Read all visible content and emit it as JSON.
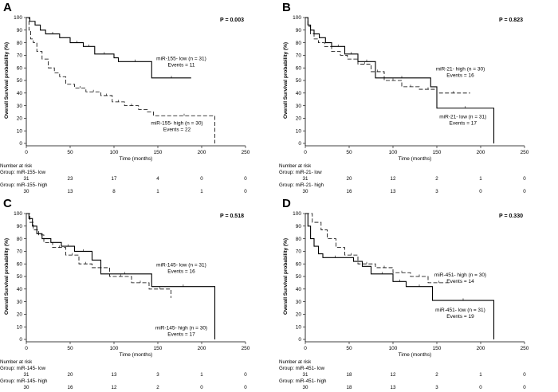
{
  "chart_data": [
    {
      "type": "line",
      "chart_subtype": "kaplan-meier",
      "panel": "A",
      "p_value": "P = 0.003",
      "xlabel": "Time (months)",
      "ylabel": "Overall Survival probability (%)",
      "xlim": [
        0,
        250
      ],
      "ylim": [
        0,
        100
      ],
      "x_ticks": [
        0,
        50,
        100,
        150,
        200,
        250
      ],
      "y_ticks": [
        0,
        10,
        20,
        30,
        40,
        50,
        60,
        70,
        80,
        90,
        100
      ],
      "series": [
        {
          "name": "miR-155- low (n = 31)",
          "events_label": "Events = 11",
          "style": "solid",
          "x": [
            0,
            4,
            10,
            16,
            22,
            38,
            50,
            65,
            78,
            100,
            105,
            143,
            188
          ],
          "y": [
            100,
            97,
            94,
            90,
            87,
            84,
            80,
            77,
            71,
            68,
            65,
            52,
            52
          ]
        },
        {
          "name": "miR-155- high (n = 30)",
          "events_label": "Events = 22",
          "style": "dashed",
          "x": [
            0,
            3,
            5,
            8,
            12,
            18,
            25,
            32,
            38,
            45,
            55,
            68,
            85,
            98,
            112,
            128,
            138,
            145,
            215
          ],
          "y": [
            100,
            90,
            83,
            80,
            73,
            67,
            60,
            56,
            53,
            47,
            44,
            41,
            38,
            33,
            30,
            27,
            25,
            22,
            0
          ]
        }
      ],
      "legend_label_position": "right",
      "risk_table": {
        "title": "Number at risk",
        "x": [
          0,
          50,
          100,
          150,
          200,
          250
        ],
        "groups": [
          {
            "label": "Group: miR-155- low",
            "counts": [
              "31",
              "23",
              "17",
              "4",
              "0",
              "0"
            ]
          },
          {
            "label": "Group: miR-155- high",
            "counts": [
              "30",
              "13",
              "8",
              "1",
              "1",
              "0"
            ]
          }
        ]
      }
    },
    {
      "type": "line",
      "chart_subtype": "kaplan-meier",
      "panel": "B",
      "p_value": "P = 0.823",
      "xlabel": "Time (months)",
      "ylabel": "Overall Survival probability (%)",
      "xlim": [
        0,
        250
      ],
      "ylim": [
        0,
        100
      ],
      "x_ticks": [
        0,
        50,
        100,
        150,
        200,
        250
      ],
      "y_ticks": [
        0,
        10,
        20,
        30,
        40,
        50,
        60,
        70,
        80,
        90,
        100
      ],
      "series": [
        {
          "name": "miR-21- high (n = 30)",
          "events_label": "Events = 16",
          "style": "dashed",
          "x": [
            0,
            3,
            6,
            10,
            15,
            22,
            30,
            40,
            48,
            60,
            75,
            90,
            110,
            130,
            150,
            188
          ],
          "y": [
            100,
            93,
            87,
            83,
            80,
            77,
            73,
            70,
            67,
            63,
            57,
            50,
            45,
            43,
            40,
            40
          ]
        },
        {
          "name": "miR-21- low (n = 31)",
          "events_label": "Events = 17",
          "style": "solid",
          "x": [
            0,
            3,
            6,
            10,
            16,
            23,
            30,
            45,
            60,
            80,
            140,
            143,
            150,
            215
          ],
          "y": [
            100,
            94,
            90,
            87,
            84,
            80,
            77,
            71,
            65,
            52,
            52,
            45,
            28,
            0
          ]
        }
      ],
      "legend_label_position": "right",
      "risk_table": {
        "title": "Number at risk",
        "x": [
          0,
          50,
          100,
          150,
          200,
          250
        ],
        "groups": [
          {
            "label": "Group: miR-21- low",
            "counts": [
              "31",
              "20",
              "12",
              "2",
              "1",
              "0"
            ]
          },
          {
            "label": "Group: miR-21- high",
            "counts": [
              "30",
              "16",
              "13",
              "3",
              "0",
              "0"
            ]
          }
        ]
      }
    },
    {
      "type": "line",
      "chart_subtype": "kaplan-meier",
      "panel": "C",
      "p_value": "P = 0.518",
      "xlabel": "Time (months)",
      "ylabel": "Overall Survival probability (%)",
      "xlim": [
        0,
        250
      ],
      "ylim": [
        0,
        100
      ],
      "x_ticks": [
        0,
        50,
        100,
        150,
        200,
        250
      ],
      "y_ticks": [
        0,
        10,
        20,
        30,
        40,
        50,
        60,
        70,
        80,
        90,
        100
      ],
      "series": [
        {
          "name": "miR-145- low (n = 31)",
          "events_label": "Events = 16",
          "style": "solid",
          "x": [
            0,
            3,
            7,
            12,
            18,
            28,
            40,
            55,
            75,
            85,
            140,
            143,
            215
          ],
          "y": [
            100,
            96,
            90,
            84,
            80,
            77,
            74,
            70,
            63,
            52,
            52,
            42,
            0
          ]
        },
        {
          "name": "miR-145- high (n = 30)",
          "events_label": "Events = 17",
          "style": "dashed",
          "x": [
            0,
            4,
            8,
            14,
            20,
            30,
            45,
            60,
            75,
            95,
            120,
            140,
            165
          ],
          "y": [
            100,
            93,
            87,
            83,
            77,
            73,
            67,
            60,
            57,
            50,
            45,
            40,
            33
          ]
        }
      ],
      "legend_label_position": "right",
      "risk_table": {
        "title": "Number at risk",
        "x": [
          0,
          50,
          100,
          150,
          200,
          250
        ],
        "groups": [
          {
            "label": "Group: miR-145- low",
            "counts": [
              "31",
              "20",
              "13",
              "3",
              "1",
              "0"
            ]
          },
          {
            "label": "Group: miR-145- high",
            "counts": [
              "30",
              "16",
              "12",
              "2",
              "0",
              "0"
            ]
          }
        ]
      }
    },
    {
      "type": "line",
      "chart_subtype": "kaplan-meier",
      "panel": "D",
      "p_value": "P = 0.330",
      "xlabel": "Time (months)",
      "ylabel": "Overall Survival probability (%)",
      "xlim": [
        0,
        250
      ],
      "ylim": [
        0,
        100
      ],
      "x_ticks": [
        0,
        50,
        100,
        150,
        200,
        250
      ],
      "y_ticks": [
        0,
        10,
        20,
        30,
        40,
        50,
        60,
        70,
        80,
        90,
        100
      ],
      "series": [
        {
          "name": "miR-451- high (n = 30)",
          "events_label": "Events = 14",
          "style": "dashed",
          "x": [
            0,
            8,
            18,
            25,
            35,
            45,
            60,
            80,
            100,
            120,
            140,
            165
          ],
          "y": [
            100,
            93,
            87,
            80,
            73,
            67,
            60,
            57,
            53,
            50,
            45,
            45
          ]
        },
        {
          "name": "miR-451- low (n = 31)",
          "events_label": "Events = 19",
          "style": "solid",
          "x": [
            0,
            3,
            6,
            10,
            15,
            20,
            48,
            55,
            65,
            75,
            100,
            115,
            145,
            215
          ],
          "y": [
            100,
            90,
            80,
            74,
            68,
            65,
            65,
            62,
            58,
            52,
            46,
            42,
            31,
            0
          ]
        }
      ],
      "legend_label_position": "right",
      "risk_table": {
        "title": "Number at risk",
        "x": [
          0,
          50,
          100,
          150,
          200,
          250
        ],
        "groups": [
          {
            "label": "Group: miR-451- low",
            "counts": [
              "31",
              "18",
              "12",
              "2",
              "1",
              "0"
            ]
          },
          {
            "label": "Group: miR-451- high",
            "counts": [
              "30",
              "18",
              "13",
              "3",
              "0",
              "0"
            ]
          }
        ]
      }
    }
  ]
}
